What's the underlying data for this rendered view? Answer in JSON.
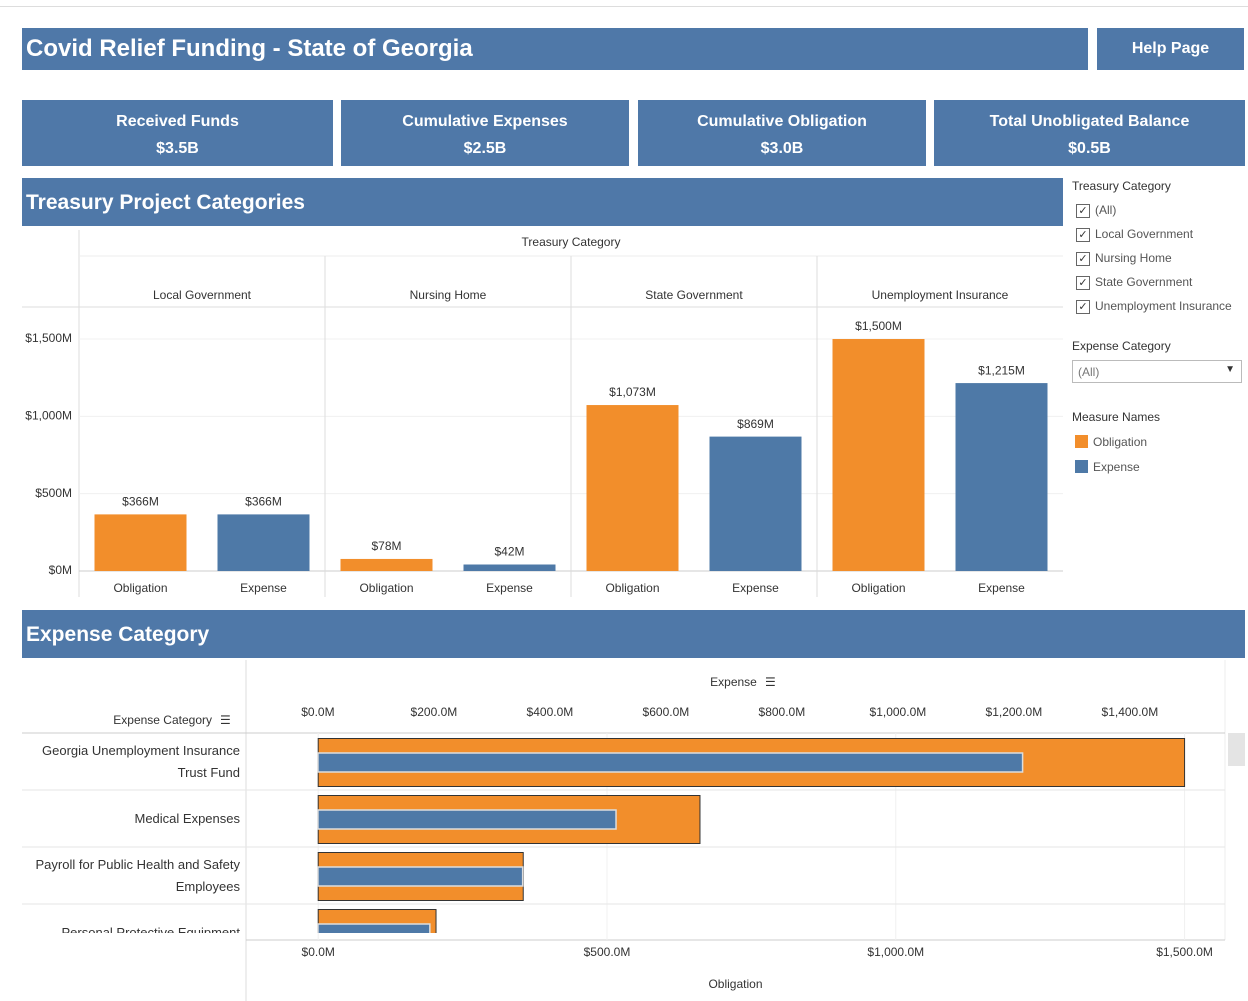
{
  "header": {
    "title": "Covid Relief Funding - State of Georgia",
    "help": "Help Page"
  },
  "kpis": [
    {
      "label": "Received Funds",
      "value": "$3.5B"
    },
    {
      "label": "Cumulative Expenses",
      "value": "$2.5B"
    },
    {
      "label": "Cumulative Obligation",
      "value": "$3.0B"
    },
    {
      "label": "Total Unobligated Balance",
      "value": "$0.5B"
    }
  ],
  "filters": {
    "treasury": {
      "title": "Treasury Category",
      "options": [
        "(All)",
        "Local Government",
        "Nursing Home",
        "State Government",
        "Unemployment Insurance"
      ]
    },
    "expense": {
      "title": "Expense Category",
      "selected": "(All)"
    },
    "legend_title": "Measure Names"
  },
  "chart_data": [
    {
      "type": "bar",
      "title": "Treasury Project Categories",
      "column_title": "Treasury Category",
      "categories": [
        "Local Government",
        "Nursing Home",
        "State Government",
        "Unemployment Insurance"
      ],
      "series": [
        {
          "name": "Obligation",
          "color": "#f28e2b",
          "values": [
            366,
            78,
            1073,
            1500
          ],
          "value_labels": [
            "$366M",
            "$78M",
            "$1,073M",
            "$1,500M"
          ]
        },
        {
          "name": "Expense",
          "color": "#4e79a7",
          "values": [
            366,
            42,
            869,
            1215
          ],
          "value_labels": [
            "$366M",
            "$42M",
            "$869M",
            "$1,215M"
          ]
        }
      ],
      "ylim": [
        0,
        1707
      ],
      "yticks": [
        {
          "value": 0,
          "label": "$0M"
        },
        {
          "value": 500,
          "label": "$500M"
        },
        {
          "value": 1000,
          "label": "$1,000M"
        },
        {
          "value": 1500,
          "label": "$1,500M"
        }
      ],
      "grid": true
    },
    {
      "type": "hbar",
      "title": "Expense Category",
      "row_title": "Expense Category",
      "xlabel": "Obligation",
      "x2label": "Expense",
      "categories": [
        "Georgia Unemployment Insurance Trust Fund",
        "Medical Expenses",
        "Payroll for Public Health and Safety Employees",
        "Personal Protective Equipment"
      ],
      "series": [
        {
          "name": "Obligation",
          "color": "#f28e2b",
          "values": [
            1500,
            661,
            355,
            204
          ]
        },
        {
          "name": "Expense",
          "color": "#4e79a7",
          "axis": "x2",
          "values": [
            1215,
            514,
            353,
            193
          ]
        }
      ],
      "xlim": [
        -125,
        1570
      ],
      "xticks": [
        {
          "value": 0,
          "label": "$0.0M"
        },
        {
          "value": 500,
          "label": "$500.0M"
        },
        {
          "value": 1000,
          "label": "$1,000.0M"
        },
        {
          "value": 1500,
          "label": "$1,500.0M"
        }
      ],
      "x2lim": [
        -124,
        1564
      ],
      "x2ticks": [
        {
          "value": 0,
          "label": "$0.0M"
        },
        {
          "value": 200,
          "label": "$200.0M"
        },
        {
          "value": 400,
          "label": "$400.0M"
        },
        {
          "value": 600,
          "label": "$600.0M"
        },
        {
          "value": 800,
          "label": "$800.0M"
        },
        {
          "value": 1000,
          "label": "$1,000.0M"
        },
        {
          "value": 1200,
          "label": "$1,200.0M"
        },
        {
          "value": 1400,
          "label": "$1,400.0M"
        }
      ],
      "grid": true
    }
  ]
}
